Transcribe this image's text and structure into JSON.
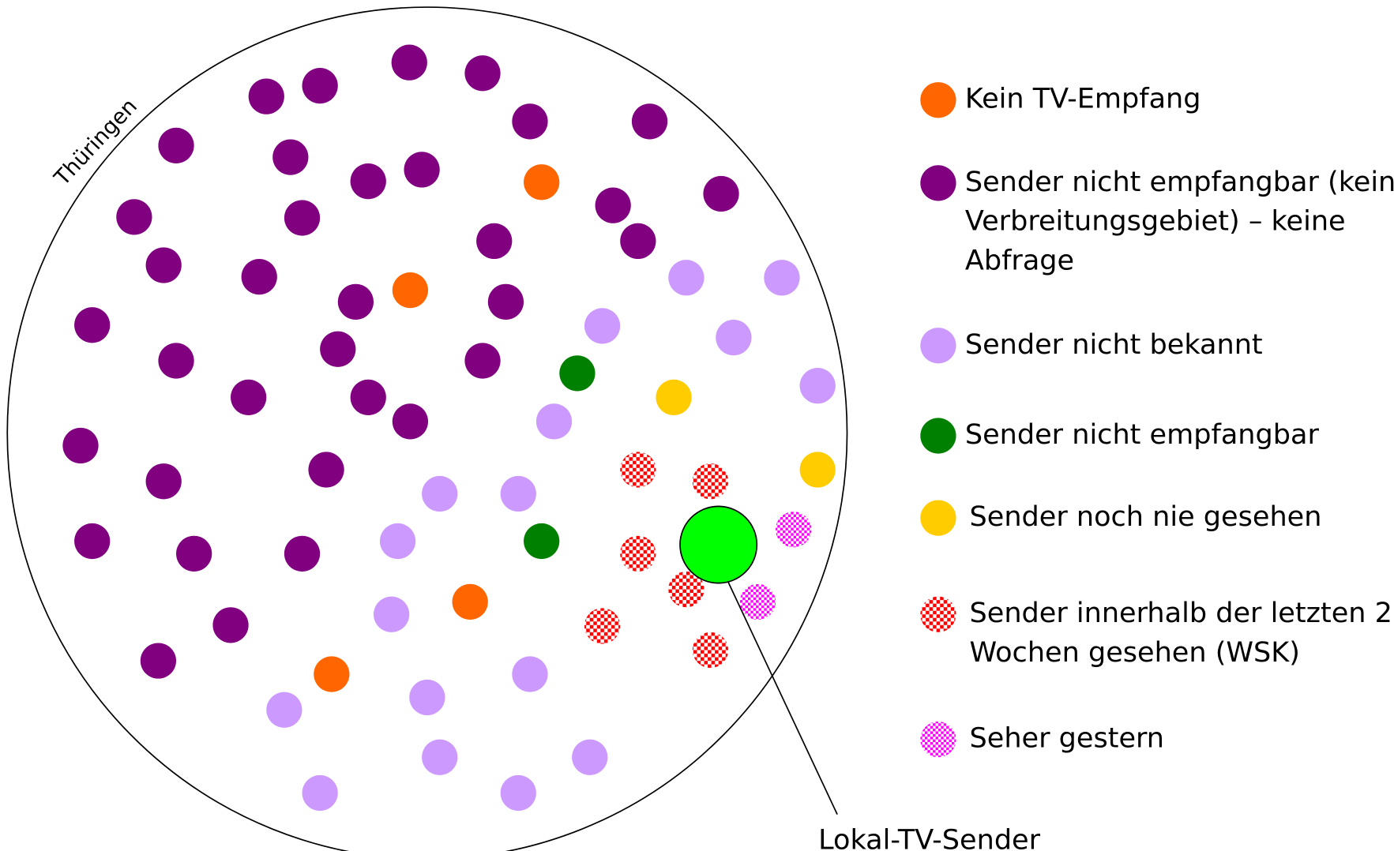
{
  "region_label": "Thüringen",
  "legend": [
    {
      "lines": [
        "Kein TV-Empfang"
      ]
    },
    {
      "lines": [
        "Sender nicht empfangbar (kein",
        "Verbreitungsgebiet) – keine",
        "Abfrage"
      ]
    },
    {
      "lines": [
        "Sender nicht bekannt"
      ]
    },
    {
      "lines": [
        "Sender nicht empfangbar"
      ]
    },
    {
      "lines": [
        "Sender noch nie gesehen"
      ]
    },
    {
      "lines": [
        "Sender innerhalb der letzten 2",
        "Wochen gesehen (WSK)"
      ]
    },
    {
      "lines": [
        "Seher gestern"
      ]
    }
  ],
  "station_label": "Lokal-TV-Sender"
}
